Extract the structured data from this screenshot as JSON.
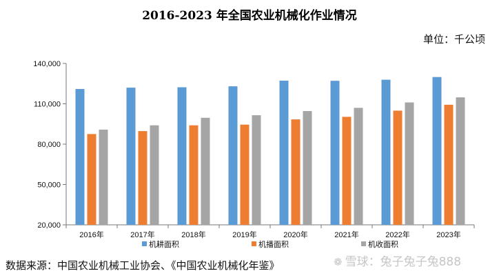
{
  "title": "2016-2023 年全国农业机械化作业情况",
  "unit_label": "单位：千公顷",
  "source_text": "数据来源：中国农业机械工业协会、《中国农业机械化年鉴》",
  "watermark_text": "雪球：兔子兔子兔888",
  "watermark_icon": "wechat-icon",
  "colors": {
    "series1": "#5B9BD5",
    "series2": "#ED7D31",
    "series3": "#A5A5A5"
  },
  "chart_data": {
    "type": "bar",
    "title": "2016-2023 年全国农业机械化作业情况",
    "xlabel": "",
    "ylabel": "单位：千公顷",
    "categories": [
      "2016年",
      "2017年",
      "2018年",
      "2019年",
      "2020年",
      "2021年",
      "2022年",
      "2023年"
    ],
    "series": [
      {
        "name": "机耕面积",
        "values": [
          121000,
          122000,
          122300,
          123000,
          127200,
          127100,
          127900,
          129900
        ]
      },
      {
        "name": "机播面积",
        "values": [
          87500,
          89700,
          94000,
          94500,
          98400,
          100300,
          104900,
          109300
        ]
      },
      {
        "name": "机收面积",
        "values": [
          90800,
          94000,
          99600,
          101500,
          104600,
          107000,
          111000,
          114800
        ]
      }
    ],
    "ylim": [
      20000,
      140000
    ],
    "yticks": [
      20000,
      50000,
      80000,
      110000,
      140000
    ],
    "ytick_labels": [
      "20,000",
      "50,000",
      "80,000",
      "110,000",
      "140,000"
    ],
    "legend_position": "bottom"
  }
}
